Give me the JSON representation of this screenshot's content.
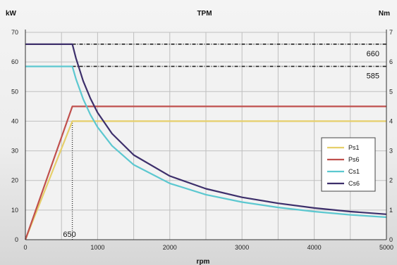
{
  "chart_data": {
    "type": "line",
    "title": "TPM",
    "ylabel": "kW",
    "ylabel_right": "Nm",
    "xlabel": "rpm",
    "xlim": [
      0,
      5000
    ],
    "ylim": [
      0,
      70
    ],
    "x_ticks": [
      "0",
      "1000",
      "2000",
      "3000",
      "4000",
      "5000"
    ],
    "y_ticks": [
      "0",
      "10",
      "20",
      "30",
      "40",
      "50",
      "60",
      "70"
    ],
    "y_ticks_right": [
      "0",
      "1",
      "2",
      "3",
      "4",
      "5",
      "6",
      "7"
    ],
    "grid": true,
    "legend_position": "right",
    "annotations": [
      "660",
      "585",
      "650"
    ],
    "series": [
      {
        "name": "Ps1",
        "color": "#e6cf6a",
        "x": [
          0,
          650,
          5000
        ],
        "y": [
          0,
          40,
          40
        ]
      },
      {
        "name": "Ps6",
        "color": "#c0504d",
        "x": [
          0,
          650,
          5000
        ],
        "y": [
          0,
          45,
          45
        ]
      },
      {
        "name": "Cs1",
        "color": "#5cc8d0",
        "x": [
          0,
          650,
          700,
          800,
          900,
          1000,
          1200,
          1500,
          2000,
          2500,
          3000,
          3500,
          4000,
          4500,
          5000
        ],
        "y": [
          58.5,
          58.5,
          54.3,
          47.5,
          42.2,
          38.0,
          31.7,
          25.3,
          19.0,
          15.2,
          12.7,
          10.9,
          9.5,
          8.4,
          7.6
        ]
      },
      {
        "name": "Cs6",
        "color": "#3d2f6b",
        "x": [
          0,
          650,
          700,
          800,
          900,
          1000,
          1200,
          1500,
          2000,
          2500,
          3000,
          3500,
          4000,
          4500,
          5000
        ],
        "y": [
          66.0,
          66.0,
          61.3,
          53.6,
          47.7,
          42.9,
          35.8,
          28.6,
          21.5,
          17.2,
          14.3,
          12.3,
          10.7,
          9.5,
          8.6
        ]
      }
    ],
    "reference_lines": [
      {
        "kind": "horizontal",
        "y": 66.0,
        "x_from": 650,
        "x_to": 5000,
        "label": "660"
      },
      {
        "kind": "horizontal",
        "y": 58.5,
        "x_from": 650,
        "x_to": 5000,
        "label": "585"
      },
      {
        "kind": "vertical",
        "x": 650,
        "y_from": 0,
        "y_to": 40,
        "label": "650"
      }
    ]
  }
}
